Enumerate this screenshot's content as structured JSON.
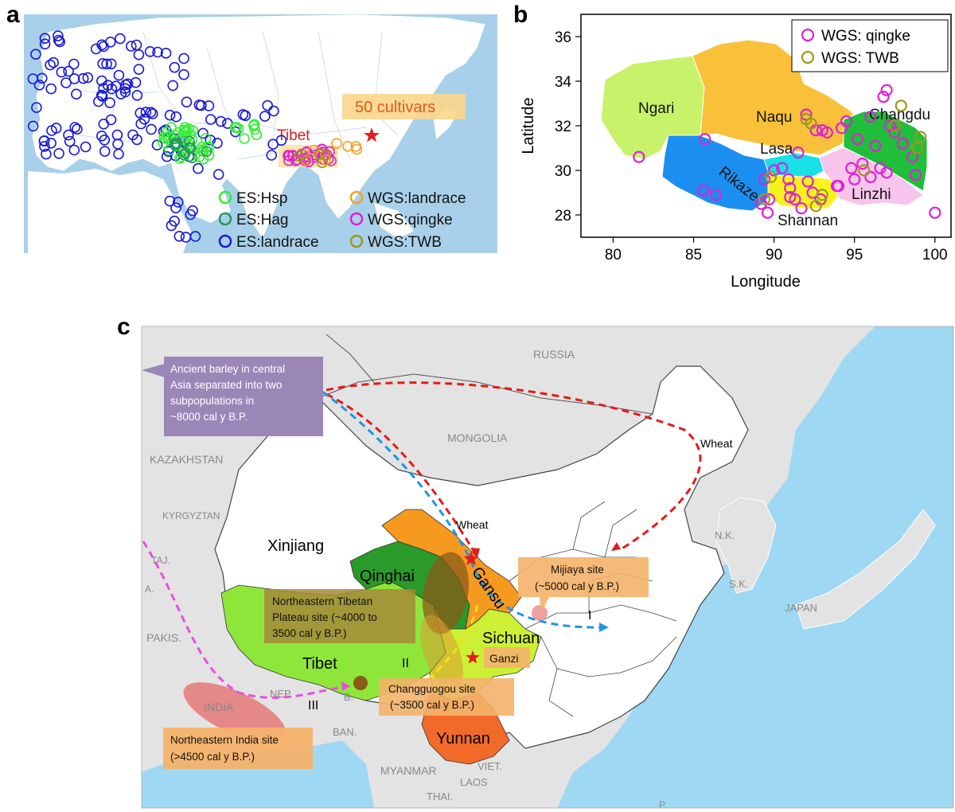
{
  "panel_labels": {
    "a": "a",
    "b": "b",
    "c": "c"
  },
  "panel_a": {
    "title_box": "50 cultivars",
    "tibet_label": "Tibet",
    "legend": [
      {
        "label": "ES:Hsp",
        "color": "#33ee33"
      },
      {
        "label": "ES:Hag",
        "color": "#22995a"
      },
      {
        "label": "ES:landrace",
        "color": "#1a1ad8"
      },
      {
        "label": "WGS:landrace",
        "color": "#f5a020"
      },
      {
        "label": "WGS:qingke",
        "color": "#e020d8"
      },
      {
        "label": "WGS:TWB",
        "color": "#9a9a1a"
      }
    ],
    "colors": {
      "sea": "#a9d0ea",
      "land": "#ffffff",
      "star": "#e02020",
      "box": "#fbd68a"
    }
  },
  "panel_b": {
    "chart_data": {
      "type": "scatter",
      "xlabel": "Longitude",
      "ylabel": "Latitude",
      "xlim": [
        78,
        101
      ],
      "ylim": [
        27,
        37
      ],
      "xticks": [
        "80",
        "85",
        "90",
        "95",
        "100"
      ],
      "yticks": [
        "28",
        "30",
        "32",
        "34",
        "36"
      ],
      "legend_position": "top-right",
      "regions": [
        {
          "name": "Ngari",
          "color": "#c8f26a"
        },
        {
          "name": "Naqu",
          "color": "#f9c13a"
        },
        {
          "name": "Changdu",
          "color": "#1fbf3a"
        },
        {
          "name": "Lasa",
          "color": "#17e0e8"
        },
        {
          "name": "Rikaze",
          "color": "#1b8ff0"
        },
        {
          "name": "Shannan",
          "color": "#f7f31a"
        },
        {
          "name": "Linzhi",
          "color": "#f7c4ec"
        }
      ],
      "series": [
        {
          "name": "WGS: qingke",
          "color": "#e020d8",
          "x": [
            81.6,
            85.6,
            85.7,
            86.4,
            89.2,
            89.4,
            89.6,
            89.7,
            90.0,
            90.5,
            90.9,
            91.0,
            91.3,
            91.5,
            91.7,
            92.0,
            92.1,
            92.4,
            92.6,
            92.9,
            93.3,
            93.9,
            94.2,
            94.5,
            94.8,
            95.2,
            95.5,
            96.0,
            96.3,
            96.6,
            96.8,
            97.0,
            97.2,
            97.5,
            98.0,
            98.6,
            98.8,
            100.0,
            91.0,
            93.0,
            94.0,
            95.0,
            96.0,
            97.0
          ],
          "y": [
            30.6,
            29.1,
            31.4,
            28.9,
            28.5,
            29.6,
            28.1,
            28.7,
            30.0,
            30.1,
            29.6,
            28.8,
            28.7,
            30.8,
            28.3,
            32.5,
            29.5,
            29.0,
            31.8,
            28.7,
            31.7,
            29.3,
            31.9,
            32.2,
            30.1,
            31.4,
            30.3,
            29.7,
            31.1,
            30.1,
            33.3,
            33.6,
            32.0,
            31.7,
            31.2,
            30.6,
            29.8,
            28.1,
            29.2,
            31.8,
            29.3,
            29.6,
            32.4,
            29.9
          ]
        },
        {
          "name": "WGS: TWB",
          "color": "#9a9a1a",
          "x": [
            89.4,
            89.8,
            92.0,
            92.3,
            92.6,
            95.6,
            97.9,
            98.9,
            99.1,
            93.0,
            97.5
          ],
          "y": [
            28.7,
            29.7,
            32.3,
            32.1,
            28.4,
            30.0,
            32.9,
            31.0,
            31.5,
            28.9,
            32.0
          ]
        }
      ]
    }
  },
  "panel_c": {
    "callouts": {
      "ancient": "Ancient barley in central Asia separated into two subpopulations in ~8000 cal y B.P.",
      "ne_tibet": "Northeastern Tibetan Plateau site (~4000 to 3500 cal y B.P.)",
      "mijiaya": "Mijiaya site (~5000 cal y B.P.)",
      "changguogou": "Changguogou site (~3500 cal y B.P.)",
      "ne_india": "Northeastern India site (>4500 cal y B.P.)"
    },
    "country_labels": [
      "RUSSIA",
      "MONGOLIA",
      "KAZAKHSTAN",
      "KYRGYZTAN",
      "TAJ.",
      "A.",
      "PAKIS.",
      "INDIA",
      "NEP.",
      "B.",
      "BAN.",
      "MYANMAR",
      "LAOS",
      "VIET.",
      "THAI.",
      "N.K.",
      "S.K.",
      "JAPAN",
      "P."
    ],
    "province_labels": {
      "xinjiang": "Xinjiang",
      "qinghai": "Qinghai",
      "gansu": "Gansu",
      "sichuan": "Sichuan",
      "tibet": "Tibet",
      "yunnan": "Yunnan",
      "ganzi": "Ganzi"
    },
    "route_labels": {
      "wheat1": "Wheat",
      "wheat2": "Wheat",
      "r1": "I",
      "r2": "II",
      "r3": "III"
    },
    "colors": {
      "sea": "#9fd8f2",
      "land_gray": "#e3e3e3",
      "china": "#ffffff",
      "callout": "#f4b26a",
      "ancient_box": "#9b86b8",
      "route_red": "#e51a1a",
      "route_blue": "#1e96e8",
      "route_yellow": "#f2e21a",
      "route_magenta": "#e84ee0"
    }
  }
}
